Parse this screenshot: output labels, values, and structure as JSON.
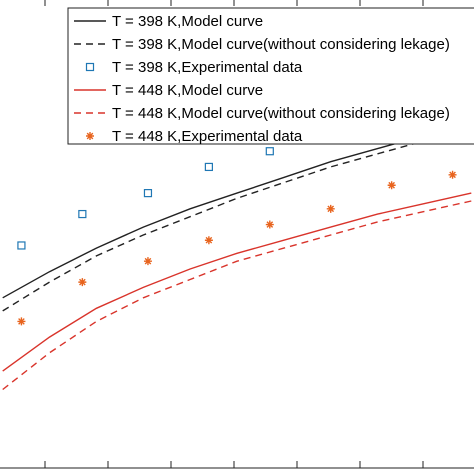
{
  "chart_data": {
    "type": "line",
    "title": "",
    "xlabel": "",
    "ylabel": "",
    "grid": false,
    "legend_placement": "top-right",
    "colors": {
      "black": "#222222",
      "red": "#d9342b",
      "blue": "#1f77b4",
      "orange": "#e8641e"
    },
    "series": [
      {
        "name": "T = 398 K,Model curve",
        "kind": "line",
        "style": "solid",
        "color": "#222222",
        "x": [
          0.0,
          0.5,
          1.0,
          1.5,
          2.0,
          2.5,
          3.0,
          3.5,
          4.0,
          4.5,
          5.0
        ],
        "y": [
          0.65,
          0.75,
          0.84,
          0.92,
          0.99,
          1.05,
          1.11,
          1.17,
          1.22,
          1.27,
          1.31
        ]
      },
      {
        "name": "T = 398 K,Model curve(without considering lekage)",
        "kind": "line",
        "style": "dashed",
        "color": "#222222",
        "x": [
          0.0,
          0.5,
          1.0,
          1.5,
          2.0,
          2.5,
          3.0,
          3.5,
          4.0,
          4.5,
          5.0
        ],
        "y": [
          0.6,
          0.71,
          0.81,
          0.89,
          0.96,
          1.03,
          1.09,
          1.15,
          1.2,
          1.25,
          1.3
        ]
      },
      {
        "name": "T = 398 K,Experimental data",
        "kind": "scatter",
        "marker": "square",
        "color": "#1f77b4",
        "x": [
          0.2,
          0.85,
          1.55,
          2.2,
          2.85,
          3.5
        ],
        "y": [
          0.85,
          0.97,
          1.05,
          1.15,
          1.21,
          1.28
        ]
      },
      {
        "name": "T = 448 K,Model curve",
        "kind": "line",
        "style": "solid",
        "color": "#d9342b",
        "x": [
          0.0,
          0.5,
          1.0,
          1.5,
          2.0,
          2.5,
          3.0,
          3.5,
          4.0,
          4.5,
          5.0
        ],
        "y": [
          0.37,
          0.5,
          0.61,
          0.69,
          0.76,
          0.82,
          0.87,
          0.92,
          0.97,
          1.01,
          1.05
        ]
      },
      {
        "name": "T = 448 K,Model curve(without considering lekage)",
        "kind": "line",
        "style": "dashed",
        "color": "#d9342b",
        "x": [
          0.0,
          0.5,
          1.0,
          1.5,
          2.0,
          2.5,
          3.0,
          3.5,
          4.0,
          4.5,
          5.0
        ],
        "y": [
          0.3,
          0.44,
          0.56,
          0.65,
          0.72,
          0.79,
          0.84,
          0.89,
          0.94,
          0.98,
          1.02
        ]
      },
      {
        "name": "T = 448 K,Experimental data",
        "kind": "scatter",
        "marker": "asterisk",
        "color": "#e8641e",
        "x": [
          0.2,
          0.85,
          1.55,
          2.2,
          2.85,
          3.5,
          4.15,
          4.8
        ],
        "y": [
          0.56,
          0.71,
          0.79,
          0.87,
          0.93,
          0.99,
          1.08,
          1.12
        ]
      }
    ],
    "xlim": [
      -0.05,
      5.05
    ],
    "ylim": [
      0.0,
      1.78
    ]
  }
}
